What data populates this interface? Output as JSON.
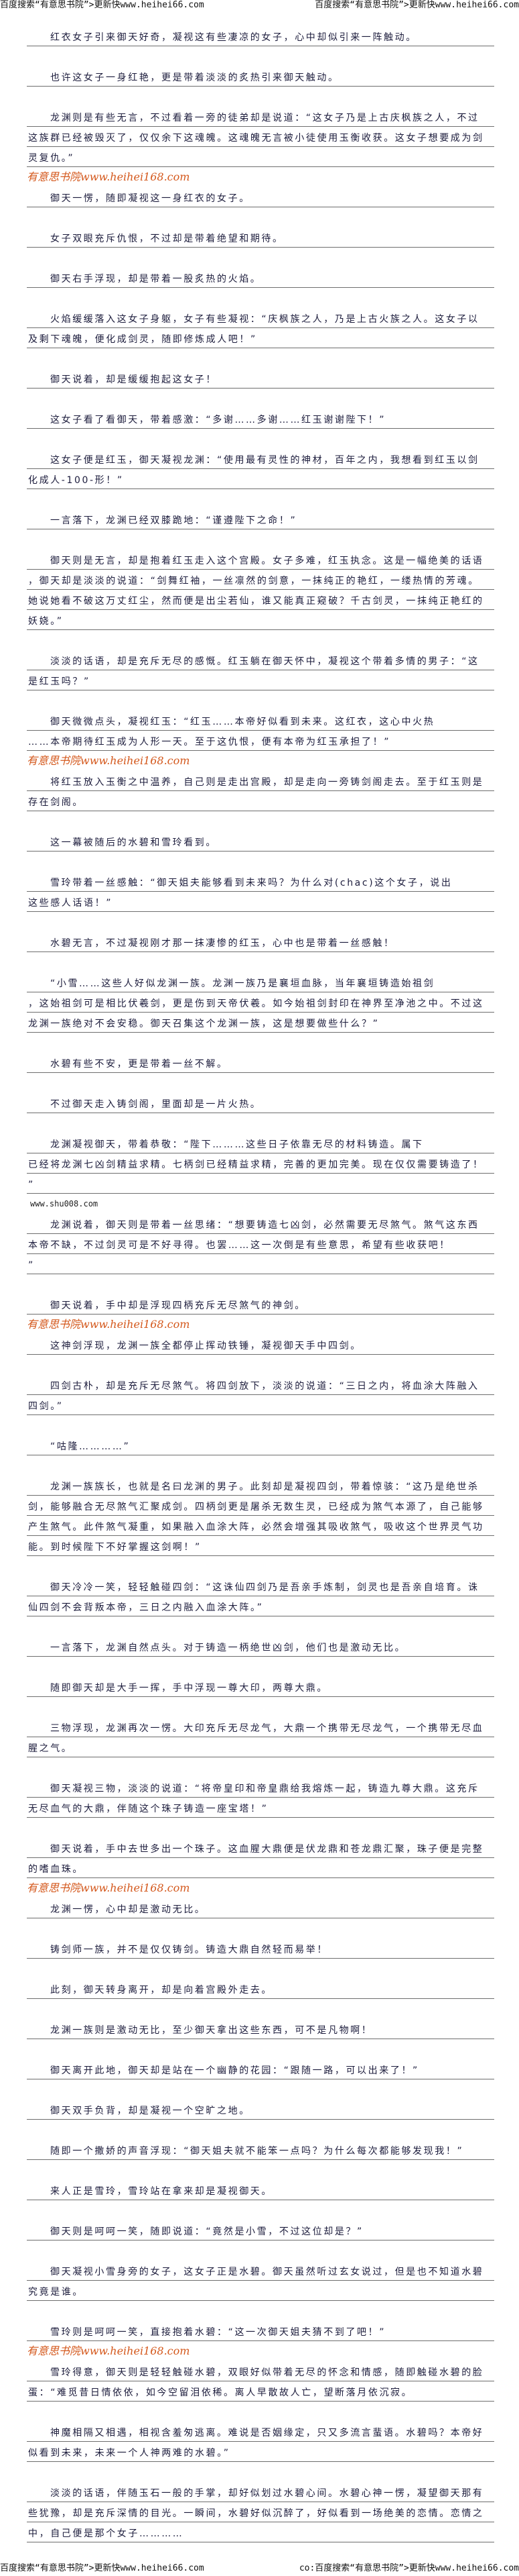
{
  "header": {
    "left": "百度搜索“有意思书院”>更新快www.heihei66.com",
    "right": "百度搜索“有意思书院”>更新快www.heihei66.com"
  },
  "footer": {
    "left": "百度搜索“有意思书院”>更新快www.heihei66.com",
    "right": "co:百度搜索“有意思书院”>更新快www.heihei66.com"
  },
  "watermark": "有意思书院www.heihei168.com",
  "watermark_color": "#d4581c",
  "paragraphs": [
    {
      "lines": [
        "红衣女子引来御天好奇，凝视这有些凄凉的女子，心中却似引来一阵触动。"
      ]
    },
    {
      "lines": [
        "也许这女子一身红艳，更是带着淡淡的炙热引来御天触动。"
      ]
    },
    {
      "lines": [
        "龙渊则是有些无言，不过看着一旁的徒弟却是说道：“这女子乃是上古庆枫族之人，不过",
        "这族群已经被毁灭了，仅仅余下这魂魄。这魂魄无言被小徒使用玉衡收获。这女子想要成为剑",
        "灵复仇。”"
      ]
    },
    {
      "lines": [
        "御天一愣，随即凝视这一身红衣的女子。"
      ]
    },
    {
      "lines": [
        "女子双眼充斥仇恨，不过却是带着绝望和期待。"
      ]
    },
    {
      "lines": [
        "御天右手浮现，却是带着一股炙热的火焰。"
      ]
    },
    {
      "lines": [
        "火焰缓缓落入这女子身躯，女子有些凝视：“庆枫族之人，乃是上古火族之人。这女子以",
        "及剩下魂魄，便化成剑灵，随即修炼成人吧！”"
      ]
    },
    {
      "lines": [
        "御天说着，却是缓缓抱起这女子！"
      ]
    },
    {
      "lines": [
        "这女子看了看御天，带着感激：“多谢……多谢……红玉谢谢陛下！”"
      ]
    },
    {
      "lines": [
        "这女子便是红玉，御天凝视龙渊：“使用最有灵性的神材，百年之内，我想看到红玉以剑",
        "化成人-100-形！”"
      ]
    },
    {
      "lines": [
        "一言落下，龙渊已经双膝跪地：“谨遵陛下之命！”"
      ]
    },
    {
      "lines": [
        "御天则是无言，却是抱着红玉走入这个宫殿。女子多难，红玉执念。这是一幅绝美的话语",
        "，御天却是淡淡的说道：“剑舞红袖，一丝凛然的剑意，一抹纯正的艳红，一缕热情的芳魂。",
        "她说她看不破这万丈红尘，然而便是出尘若仙，谁又能真正窥破？千古剑灵，一抹纯正艳红的",
        "妖娆。”"
      ]
    },
    {
      "lines": [
        "淡淡的话语，却是充斥无尽的感慨。红玉躺在御天怀中，凝视这个带着多情的男子：“这",
        "是红玉吗？”"
      ]
    },
    {
      "lines": [
        "御天微微点头，凝视红玉：“红玉……本帝好似看到未来。这红衣，这心中火热",
        "……本帝期待红玉成为人形一天。至于这仇恨，便有本帝为红玉承担了！”"
      ]
    },
    {
      "lines": [
        "将红玉放入玉衡之中温养，自己则是走出宫殿，却是走向一旁铸剑阁走去。至于红玉则是",
        "存在剑阁。"
      ]
    },
    {
      "lines": [
        "这一幕被随后的水碧和雪玲看到。"
      ]
    },
    {
      "lines": [
        "雪玲带着一丝感触：“御天姐夫能够看到未来吗？为什么对(chac)这个女子，说出",
        "这些感人话语！”"
      ]
    },
    {
      "lines": [
        "水碧无言，不过凝视刚才那一抹凄惨的红玉，心中也是带着一丝感触！"
      ]
    },
    {
      "lines": [
        "“小雪……这些人好似龙渊一族。龙渊一族乃是襄垣血脉，当年襄垣铸造始祖剑",
        "，这始祖剑可是相比伏羲剑，更是伤到天帝伏羲。如今始祖剑封印在神界至净池之中。不过这",
        "龙渊一族绝对不会安稳。御天召集这个龙渊一族，这是想要做些什么？”"
      ]
    },
    {
      "lines": [
        "水碧有些不安，更是带着一丝不解。"
      ]
    },
    {
      "lines": [
        "不过御天走入铸剑阁，里面却是一片火热。"
      ]
    },
    {
      "lines": [
        "龙渊凝视御天，带着恭敬：“陛下………这些日子依靠无尽的材料铸造。属下",
        "已经将龙渊七凶剑精益求精。七柄剑已经精益求精，完善的更加完美。现在仅仅需要铸造了！",
        "”"
      ],
      "after": "www.shu008.com"
    },
    {
      "lines": [
        "龙渊说着，御天则是带着一丝思绪：“想要铸造七凶剑，必然需要无尽煞气。煞气这东西",
        "本帝不缺，不过剑灵可是不好寻得。也罢……这一次倒是有些意思，希望有些收获吧！",
        "”"
      ]
    },
    {
      "lines": [
        "御天说着，手中却是浮现四柄充斥无尽煞气的神剑。"
      ]
    },
    {
      "lines": [
        "这神剑浮现，龙渊一族全都停止挥动铁锤，凝视御天手中四剑。"
      ]
    },
    {
      "lines": [
        "四剑古朴，却是充斥无尽煞气。将四剑放下，淡淡的说道：“三日之内，将血涂大阵融入",
        "四剑。”"
      ]
    },
    {
      "lines": [
        "“咕隆…………”"
      ]
    },
    {
      "lines": [
        "龙渊一族族长，也就是名曰龙渊的男子。此刻却是凝视四剑，带着惊骇：“这乃是绝世杀",
        "剑，能够融合无尽煞气汇聚成剑。四柄剑更是屠杀无数生灵，已经成为煞气本源了，自己能够",
        "产生煞气。此件煞气凝重，如果融入血涂大阵，必然会增强其吸收煞气，吸收这个世界灵气功",
        "能。到时候陛下不好掌握这剑啊！”"
      ]
    },
    {
      "lines": [
        "御天冷冷一笑，轻轻触碰四剑：“这诛仙四剑乃是吾亲手炼制，剑灵也是吾亲自培育。诛",
        "仙四剑不会背叛本帝，三日之内融入血涂大阵。”"
      ]
    },
    {
      "lines": [
        "一言落下，龙渊自然点头。对于铸造一柄绝世凶剑，他们也是激动无比。"
      ]
    },
    {
      "lines": [
        "随即御天却是大手一挥，手中浮现一尊大印，两尊大鼎。"
      ]
    },
    {
      "lines": [
        "三物浮现，龙渊再次一愣。大印充斥无尽龙气，大鼎一个携带无尽龙气，一个携带无尽血",
        "腥之气。"
      ]
    },
    {
      "lines": [
        "御天凝视三物，淡淡的说道：“将帝皇印和帝皇鼎给我熔炼一起，铸造九尊大鼎。这充斥",
        "无尽血气的大鼎，伴随这个珠子铸造一座宝塔！”"
      ]
    },
    {
      "lines": [
        "御天说着，手中去世多出一个珠子。这血腥大鼎便是伏龙鼎和苍龙鼎汇聚，珠子便是完整",
        "的嗜血珠。"
      ]
    },
    {
      "lines": [
        "龙渊一愣，心中却是激动无比。"
      ]
    },
    {
      "lines": [
        "铸剑师一族，并不是仅仅铸剑。铸造大鼎自然轻而易举！"
      ]
    },
    {
      "lines": [
        "此刻，御天转身离开，却是向着宫殿外走去。"
      ]
    },
    {
      "lines": [
        "龙渊一族则是激动无比，至少御天拿出这些东西，可不是凡物啊！"
      ]
    },
    {
      "lines": [
        "御天离开此地，御天却是站在一个幽静的花园：“跟随一路，可以出来了！”"
      ]
    },
    {
      "lines": [
        "御天双手负背，却是凝视一个空旷之地。"
      ]
    },
    {
      "lines": [
        "随即一个撒娇的声音浮现：“御天姐夫就不能笨一点吗？为什么每次都能够发现我！”"
      ]
    },
    {
      "lines": [
        "来人正是雪玲，雪玲站在拿来却是凝视御天。"
      ]
    },
    {
      "lines": [
        "御天则是呵呵一笑，随即说道：“竟然是小雪，不过这位却是？”"
      ]
    },
    {
      "lines": [
        "御天凝视小雪身旁的女子，这女子正是水碧。御天虽然听过玄女说过，但是也不知道水碧",
        "究竟是谁。"
      ]
    },
    {
      "lines": [
        "雪玲则是呵呵一笑，直接抱着水碧：“这一次御天姐夫猜不到了吧！”"
      ]
    },
    {
      "lines": [
        "雪玲得意，御天则是轻轻触碰水碧，双眼好似带着无尽的怀念和情感，随即触碰水碧的脸",
        "蛋：“难觅昔日情依依，如今空留泪依稀。离人早散故人亡，望断落月依沉寂。"
      ]
    },
    {
      "lines": [
        "神魔相隔又相遇，相视含羞匆逃离。难说是否姻缘定，只又多流言蜚语。水碧吗？本帝好",
        "似看到未来，未来一个人神两难的水碧。”"
      ]
    },
    {
      "lines": [
        "淡淡的话语，伴随玉石一般的手掌，却好似划过水碧心间。水碧心神一愣，凝望御天那有",
        "些犹豫，却是充斥深情的目光。一瞬间，水碧好似沉醉了，好似看到一场绝美的恋情。恋情之",
        "中，自己便是那个女子…………"
      ]
    }
  ]
}
